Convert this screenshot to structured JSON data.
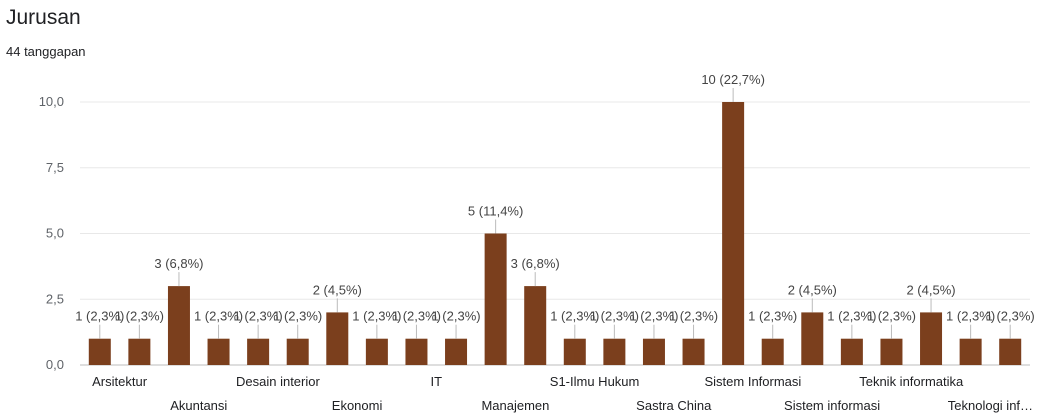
{
  "header": {
    "title": "Jurusan",
    "responses": "44 tanggapan"
  },
  "chart_data": {
    "type": "bar",
    "title": "Jurusan",
    "xlabel": "",
    "ylabel": "",
    "ylim": [
      0,
      10
    ],
    "yticks": [
      "0,0",
      "2,5",
      "5,0",
      "7,5",
      "10,0"
    ],
    "grid": true,
    "categories": [
      "Arsitektur",
      "",
      "Akuntansi",
      "",
      "Desain interior",
      "",
      "Ekonomi",
      "",
      "IT",
      "",
      "Manajemen",
      "",
      "S1-Ilmu Hukum",
      "",
      "Sastra China",
      "",
      "Sistem Informasi",
      "",
      "Sistem informasi",
      "",
      "Teknik informatika",
      "",
      "Teknologi inf…",
      ""
    ],
    "values": [
      1,
      1,
      3,
      1,
      1,
      1,
      2,
      1,
      1,
      1,
      5,
      3,
      1,
      1,
      1,
      1,
      10,
      1,
      2,
      1,
      1,
      2,
      1,
      1
    ],
    "data_labels": [
      "1 (2,3%)",
      "1 (2,3%)",
      "3 (6,8%)",
      "1 (2,3%)",
      "1 (2,3%)",
      "1 (2,3%)",
      "2 (4,5%)",
      "1 (2,3%)",
      "1 (2,3%)",
      "1 (2,3%)",
      "5 (11,4%)",
      "3 (6,8%)",
      "1 (2,3%)",
      "1 (2,3%)",
      "1 (2,3%)",
      "1 (2,3%)",
      "10 (22,7%)",
      "1 (2,3%)",
      "2 (4,5%)",
      "1 (2,3%)",
      "1 (2,3%)",
      "2 (4,5%)",
      "1 (2,3%)",
      "1 (2,3%)"
    ],
    "bar_color": "#7b3f1d"
  }
}
